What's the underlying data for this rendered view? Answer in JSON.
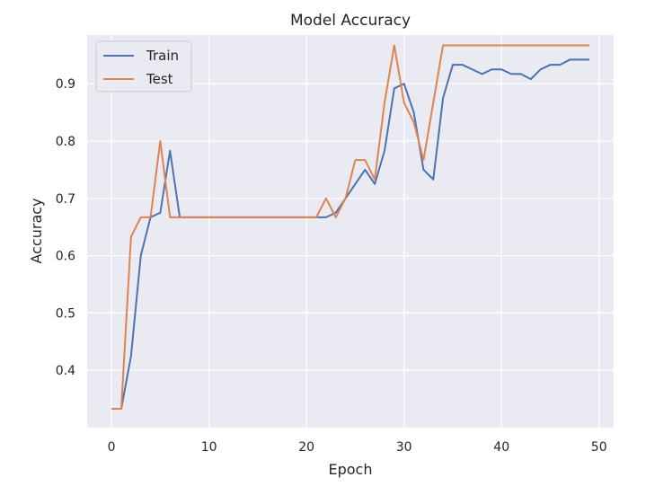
{
  "chart_data": {
    "type": "line",
    "title": "Model Accuracy",
    "xlabel": "Epoch",
    "ylabel": "Accuracy",
    "xlim": [
      -2.5,
      51.5
    ],
    "ylim": [
      0.3,
      0.985
    ],
    "xticks": [
      0,
      10,
      20,
      30,
      40,
      50
    ],
    "yticks": [
      0.4,
      0.5,
      0.6,
      0.7,
      0.8,
      0.9
    ],
    "ytick_labels": [
      "0.4",
      "0.5",
      "0.6",
      "0.7",
      "0.8",
      "0.9"
    ],
    "grid": true,
    "legend_position": "top-left",
    "x": [
      0,
      1,
      2,
      3,
      4,
      5,
      6,
      7,
      8,
      9,
      10,
      11,
      12,
      13,
      14,
      15,
      16,
      17,
      18,
      19,
      20,
      21,
      22,
      23,
      24,
      25,
      26,
      27,
      28,
      29,
      30,
      31,
      32,
      33,
      34,
      35,
      36,
      37,
      38,
      39,
      40,
      41,
      42,
      43,
      44,
      45,
      46,
      47,
      48,
      49
    ],
    "series": [
      {
        "name": "Train",
        "color": "#4c72b0",
        "values": [
          0.333,
          0.333,
          0.425,
          0.6,
          0.667,
          0.675,
          0.783,
          0.667,
          0.667,
          0.667,
          0.667,
          0.667,
          0.667,
          0.667,
          0.667,
          0.667,
          0.667,
          0.667,
          0.667,
          0.667,
          0.667,
          0.667,
          0.667,
          0.675,
          0.7,
          0.725,
          0.75,
          0.725,
          0.783,
          0.892,
          0.9,
          0.85,
          0.75,
          0.733,
          0.875,
          0.933,
          0.933,
          0.925,
          0.917,
          0.925,
          0.925,
          0.917,
          0.917,
          0.908,
          0.925,
          0.933,
          0.933,
          0.942,
          0.942,
          0.942
        ]
      },
      {
        "name": "Test",
        "color": "#dd8452",
        "values": [
          0.333,
          0.333,
          0.633,
          0.667,
          0.667,
          0.8,
          0.667,
          0.667,
          0.667,
          0.667,
          0.667,
          0.667,
          0.667,
          0.667,
          0.667,
          0.667,
          0.667,
          0.667,
          0.667,
          0.667,
          0.667,
          0.667,
          0.7,
          0.667,
          0.7,
          0.767,
          0.767,
          0.733,
          0.867,
          0.967,
          0.867,
          0.833,
          0.767,
          0.867,
          0.967,
          0.967,
          0.967,
          0.967,
          0.967,
          0.967,
          0.967,
          0.967,
          0.967,
          0.967,
          0.967,
          0.967,
          0.967,
          0.967,
          0.967,
          0.967
        ]
      }
    ]
  },
  "colors": {
    "plot_background": "#eaeaf2",
    "grid": "#ffffff",
    "text": "#262626"
  }
}
